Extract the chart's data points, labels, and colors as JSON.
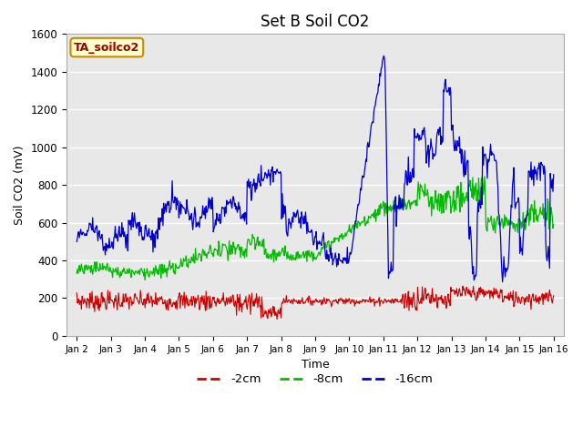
{
  "title": "Set B Soil CO2",
  "xlabel": "Time",
  "ylabel": "Soil CO2 (mV)",
  "ylim": [
    0,
    1600
  ],
  "background_color": "#e8e8e8",
  "fig_color": "#ffffff",
  "red_color": "#cc0000",
  "green_color": "#00bb00",
  "blue_color": "#0000cc",
  "red_label": "-2cm",
  "green_label": "-8cm",
  "blue_label": "-16cm",
  "legend_box_label": "TA_soilco2",
  "legend_box_bg": "#ffffcc",
  "legend_box_edge": "#cc8800",
  "legend_box_text": "#990000",
  "xtick_labels": [
    "Jan 2",
    "Jan 3",
    "Jan 4",
    "Jan 5",
    "Jan 6",
    "Jan 7",
    "Jan 8",
    "Jan 9",
    "Jan 10",
    "Jan 11",
    "Jan 12",
    "Jan 13",
    "Jan 14",
    "Jan 15",
    "Jan 16"
  ],
  "ytick_labels": [
    "0",
    "200",
    "400",
    "600",
    "800",
    "1000",
    "1200",
    "1400",
    "1600"
  ],
  "grid_color": "#ffffff",
  "title_fontsize": 12
}
